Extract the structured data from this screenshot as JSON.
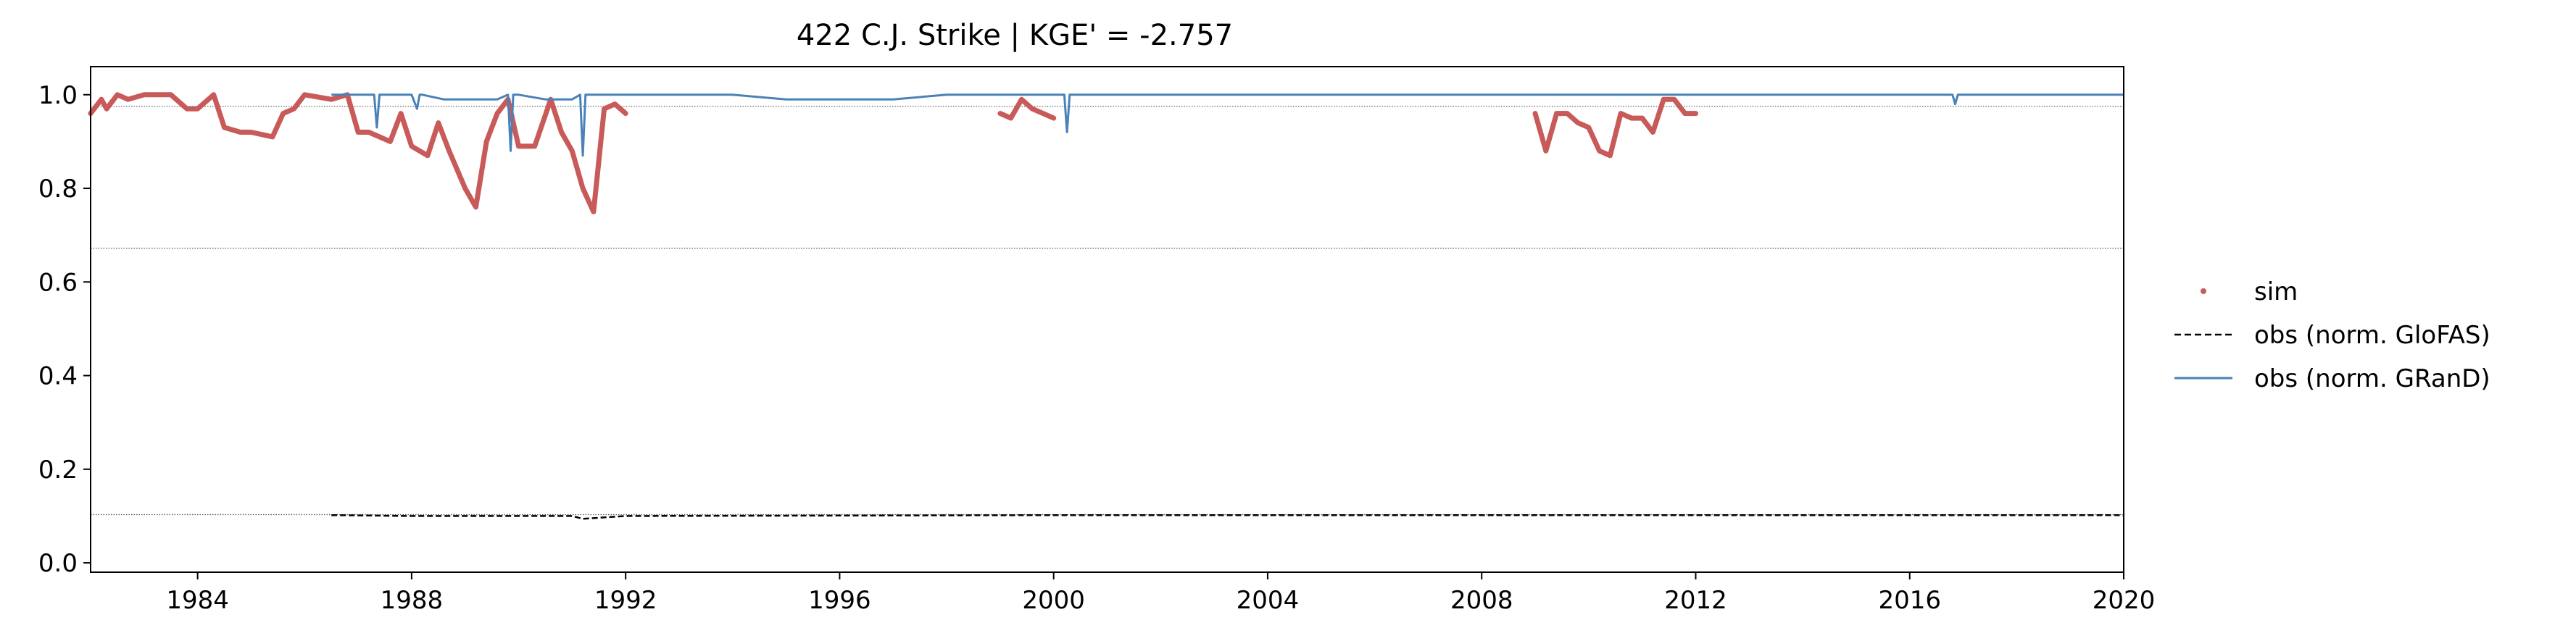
{
  "chart_data": {
    "type": "line",
    "title": "422  C.J. Strike | KGE' = -2.757",
    "xlabel": "",
    "ylabel": "",
    "xlim": [
      1982.0,
      2020.0
    ],
    "ylim": [
      -0.02,
      1.06
    ],
    "xticks": [
      1984,
      1988,
      1992,
      1996,
      2000,
      2004,
      2008,
      2012,
      2016,
      2020
    ],
    "xtick_labels": [
      "1984",
      "1988",
      "1992",
      "1996",
      "2000",
      "2004",
      "2008",
      "2012",
      "2016",
      "2020"
    ],
    "yticks": [
      0.0,
      0.2,
      0.4,
      0.6,
      0.8,
      1.0
    ],
    "ytick_labels": [
      "0.0",
      "0.2",
      "0.4",
      "0.6",
      "0.8",
      "1.0"
    ],
    "grid": false,
    "legend_position": "outside-right",
    "reference_lines": [
      0.975,
      0.672,
      0.103
    ],
    "series": [
      {
        "name": "sim",
        "style": "points",
        "color": "#c85a5a",
        "segments": [
          {
            "x": [
              1982.0,
              1982.2,
              1982.3,
              1982.5,
              1982.7,
              1983.0,
              1983.5,
              1983.8,
              1984.0,
              1984.3,
              1984.5,
              1984.8,
              1985.0,
              1985.4,
              1985.6,
              1985.8,
              1986.0,
              1986.5,
              1986.8,
              1987.0,
              1987.2,
              1987.6,
              1987.8,
              1988.0,
              1988.3,
              1988.5,
              1988.7,
              1989.0,
              1989.2,
              1989.4,
              1989.6,
              1989.8,
              1990.0,
              1990.3,
              1990.6,
              1990.8,
              1991.0,
              1991.2,
              1991.4,
              1991.6,
              1991.8,
              1992.0
            ],
            "y": [
              0.96,
              0.99,
              0.97,
              1.0,
              0.99,
              1.0,
              1.0,
              0.97,
              0.97,
              1.0,
              0.93,
              0.92,
              0.92,
              0.91,
              0.96,
              0.97,
              1.0,
              0.99,
              1.0,
              0.92,
              0.92,
              0.9,
              0.96,
              0.89,
              0.87,
              0.94,
              0.88,
              0.8,
              0.76,
              0.9,
              0.96,
              0.99,
              0.89,
              0.89,
              0.99,
              0.92,
              0.88,
              0.8,
              0.75,
              0.97,
              0.98,
              0.96
            ]
          },
          {
            "x": [
              1999.0,
              1999.2,
              1999.4,
              1999.6,
              1999.8,
              2000.0
            ],
            "y": [
              0.96,
              0.95,
              0.99,
              0.97,
              0.96,
              0.95
            ]
          },
          {
            "x": [
              2009.0,
              2009.2,
              2009.4,
              2009.6,
              2009.8,
              2010.0,
              2010.2,
              2010.4,
              2010.6,
              2010.8,
              2011.0,
              2011.2,
              2011.4,
              2011.6,
              2011.8,
              2012.0
            ],
            "y": [
              0.96,
              0.88,
              0.96,
              0.96,
              0.94,
              0.93,
              0.88,
              0.87,
              0.96,
              0.95,
              0.95,
              0.92,
              0.99,
              0.99,
              0.96,
              0.96
            ]
          }
        ]
      },
      {
        "name": "obs (norm. GloFAS)",
        "style": "dashed",
        "color": "#000000",
        "segments": [
          {
            "x": [
              1986.5,
              1988.0,
              1990.0,
              1991.0,
              1991.2,
              1992.0,
              1996.0,
              2000.0,
              2004.0,
              2008.0,
              2012.0,
              2016.0,
              2020.0
            ],
            "y": [
              0.102,
              0.1,
              0.1,
              0.1,
              0.094,
              0.1,
              0.101,
              0.102,
              0.102,
              0.102,
              0.102,
              0.102,
              0.102
            ]
          }
        ]
      },
      {
        "name": "obs (norm. GRanD)",
        "style": "solid",
        "color": "#4a82b8",
        "segments": [
          {
            "x": [
              1986.5,
              1987.0,
              1987.3,
              1987.35,
              1987.4,
              1988.0,
              1988.1,
              1988.15,
              1988.2,
              1988.6,
              1989.0,
              1989.6,
              1989.8,
              1989.85,
              1989.9,
              1990.0,
              1990.5,
              1991.0,
              1991.15,
              1991.2,
              1991.25,
              1991.5,
              1992.0,
              1993.0,
              1994.0,
              1995.0,
              1996.0,
              1997.0,
              1998.0,
              1999.0,
              2000.0,
              2000.2,
              2000.25,
              2000.3,
              2000.5,
              2002.0,
              2004.0,
              2006.0,
              2008.0,
              2010.0,
              2012.0,
              2014.0,
              2016.0,
              2016.8,
              2016.85,
              2016.9,
              2018.0,
              2020.0
            ],
            "y": [
              1.0,
              1.0,
              1.0,
              0.93,
              1.0,
              1.0,
              0.97,
              1.0,
              1.0,
              0.99,
              0.99,
              0.99,
              1.0,
              0.88,
              1.0,
              1.0,
              0.99,
              0.99,
              1.0,
              0.87,
              1.0,
              1.0,
              1.0,
              1.0,
              1.0,
              0.99,
              0.99,
              0.99,
              1.0,
              1.0,
              1.0,
              1.0,
              0.92,
              1.0,
              1.0,
              1.0,
              1.0,
              1.0,
              1.0,
              1.0,
              1.0,
              1.0,
              1.0,
              1.0,
              0.98,
              1.0,
              1.0,
              1.0
            ]
          }
        ]
      }
    ]
  }
}
